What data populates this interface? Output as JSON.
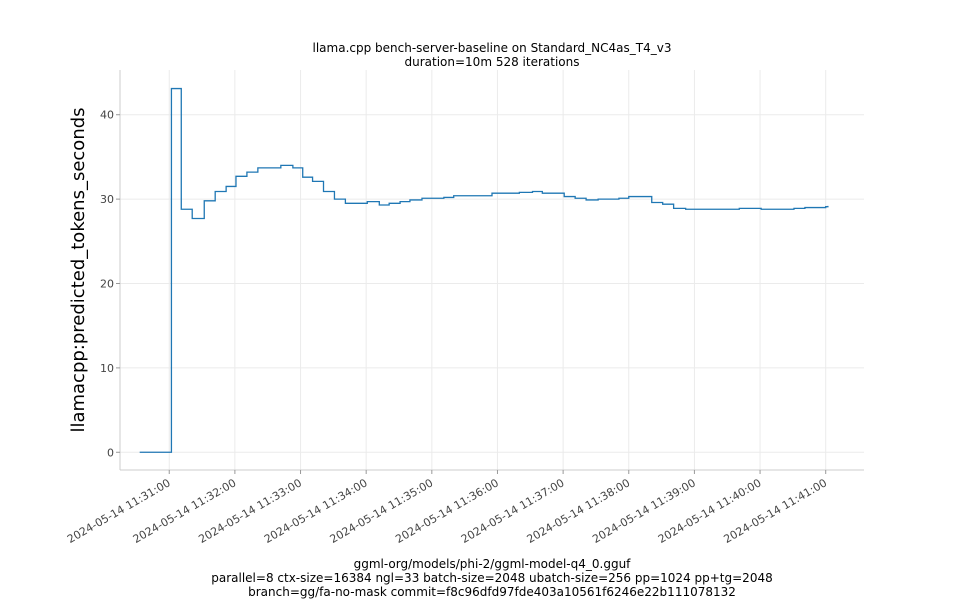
{
  "chart_data": {
    "type": "line",
    "title": "llama.cpp bench-server-baseline on Standard_NC4as_T4_v3",
    "subtitle": "duration=10m 528 iterations",
    "xlabel_lines": [
      "ggml-org/models/phi-2/ggml-model-q4_0.gguf",
      "parallel=8 ctx-size=16384 ngl=33 batch-size=2048 ubatch-size=256 pp=1024 pp+tg=2048",
      "branch=gg/fa-no-mask commit=f8c96dfd97fde403a10561f6246e22b111078132"
    ],
    "ylabel": "llamacpp:predicted_tokens_seconds",
    "date": "2024-05-14",
    "xlim": [
      "11:30:15",
      "11:41:35"
    ],
    "ylim": [
      -2.1,
      45.3
    ],
    "yticks": [
      0,
      10,
      20,
      30,
      40
    ],
    "xticks": [
      "2024-05-14 11:31:00",
      "2024-05-14 11:32:00",
      "2024-05-14 11:33:00",
      "2024-05-14 11:34:00",
      "2024-05-14 11:35:00",
      "2024-05-14 11:36:00",
      "2024-05-14 11:37:00",
      "2024-05-14 11:38:00",
      "2024-05-14 11:39:00",
      "2024-05-14 11:40:00",
      "2024-05-14 11:41:00"
    ],
    "grid": true,
    "color": "#1f77b4",
    "x": [
      "11:30:33",
      "11:31:00",
      "11:31:02",
      "11:31:11",
      "11:31:21",
      "11:31:32",
      "11:31:42",
      "11:31:52",
      "11:32:01",
      "11:32:11",
      "11:32:21",
      "11:32:42",
      "11:32:53",
      "11:33:02",
      "11:33:11",
      "11:33:21",
      "11:33:31",
      "11:33:41",
      "11:34:01",
      "11:34:12",
      "11:34:21",
      "11:34:31",
      "11:34:40",
      "11:34:51",
      "11:35:11",
      "11:35:20",
      "11:35:51",
      "11:35:55",
      "11:36:20",
      "11:36:32",
      "11:36:41",
      "11:37:01",
      "11:37:11",
      "11:37:21",
      "11:37:32",
      "11:37:51",
      "11:38:00",
      "11:38:21",
      "11:38:31",
      "11:38:41",
      "11:38:52",
      "11:39:41",
      "11:40:01",
      "11:40:31",
      "11:40:41",
      "11:41:00",
      "11:41:02"
    ],
    "y": [
      0,
      0,
      43.1,
      28.8,
      27.7,
      29.8,
      30.9,
      31.5,
      32.7,
      33.2,
      33.7,
      34.0,
      33.7,
      32.6,
      32.1,
      30.9,
      30.0,
      29.5,
      29.7,
      29.3,
      29.5,
      29.7,
      29.9,
      30.1,
      30.2,
      30.4,
      30.4,
      30.7,
      30.8,
      30.9,
      30.7,
      30.3,
      30.1,
      29.9,
      30.0,
      30.1,
      30.3,
      29.6,
      29.4,
      28.9,
      28.8,
      28.9,
      28.8,
      28.9,
      29.0,
      29.1,
      29.2
    ]
  }
}
